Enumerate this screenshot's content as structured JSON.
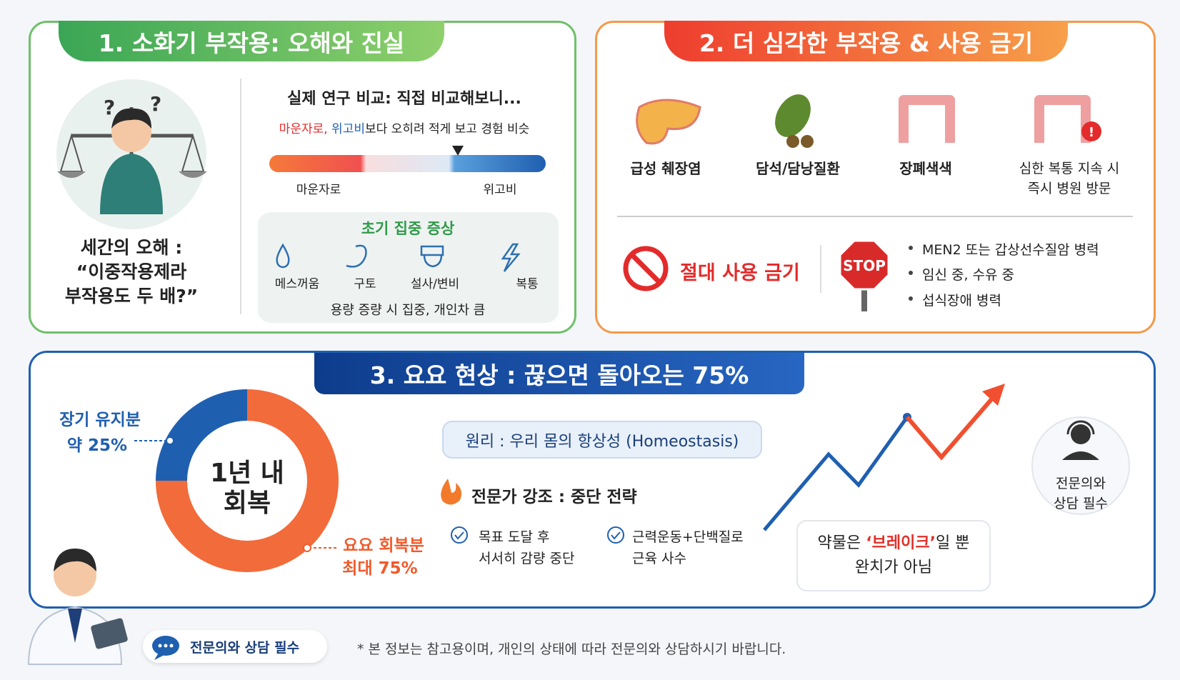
{
  "section1": {
    "title": "1. 소화기 부작용: 오해와 진실",
    "myth": {
      "label": "세간의 오해 :",
      "quote": "“이중작용제라\n부작용도 두 배?”"
    },
    "comparison": {
      "title": "실제 연구 비교: 직접 비교해보니...",
      "note_red": "마운자로,",
      "note_blue": "위고비",
      "note_rest": "보다 오히려 적게 보고 경험 비슷",
      "left": "마운자로",
      "right": "위고비"
    },
    "symptoms": {
      "title": "초기 집중 증상",
      "items": [
        "메스꺼움",
        "구토",
        "설사/변비",
        "복통"
      ],
      "note": "용량 증량 시 집중, 개인차 큼"
    }
  },
  "section2": {
    "title": "2. 더 심각한 부작용 & 사용 금기",
    "effects": [
      "급성 췌장염",
      "담석/담낭질환",
      "장폐색색",
      "심한 복통 지속 시\n즉시 병원 방문"
    ],
    "contraindication": {
      "label": "절대 사용 금기",
      "sign": "STOP",
      "items": [
        "MEN2 또는 갑상선수질암 병력",
        "임신 중, 수유 중",
        "섭식장애 병력"
      ]
    }
  },
  "section3": {
    "title": "3. 요요 현상 : 끊으면 돌아오는 75%",
    "donut": {
      "center": "1년 내\n회복",
      "segments": [
        {
          "name": "장기 유지분",
          "value_label": "약 25%",
          "value": 25,
          "color": "#1f5fb0"
        },
        {
          "name": "요요 회복분",
          "value_label": "최대 75%",
          "value": 75,
          "color": "#f26b3a"
        }
      ]
    },
    "principle": "원리 : 우리 몸의 항상성 (Homeostasis)",
    "expert": {
      "title": "전문가 강조 : 중단 전략",
      "items": [
        "목표 도달 후\n서서히 감량 중단",
        "근력운동+단백질로\n근육 사수"
      ]
    },
    "brake": {
      "before": "약물은 ",
      "highlight": "‘브레이크’",
      "after": "일 뿐\n완치가 아님"
    },
    "consult": "전문의와\n상담 필수"
  },
  "footer": {
    "badge": "전문의와 상담 필수",
    "note": "* 본 정보는 참고용이며, 개인의 상태에 따라 전문의와 상담하시기 바랍니다."
  }
}
